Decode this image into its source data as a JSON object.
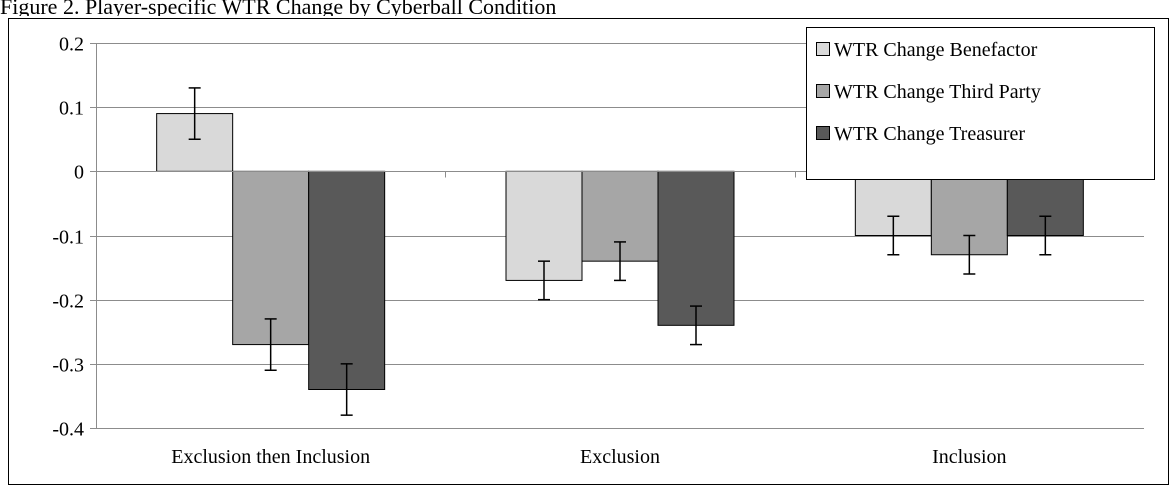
{
  "figure_title": "Figure 2. Player-specific WTR Change by Cyberball Condition",
  "chart_data": {
    "type": "bar",
    "title": "",
    "xlabel": "",
    "ylabel": "",
    "categories": [
      "Exclusion then Inclusion",
      "Exclusion",
      "Inclusion"
    ],
    "ylim": [
      -0.4,
      0.2
    ],
    "yticks": [
      0.2,
      0.1,
      0,
      -0.1,
      -0.2,
      -0.3,
      -0.4
    ],
    "ytick_labels": [
      "0.2",
      "0.1",
      "0",
      "-0.1",
      "-0.2",
      "-0.3",
      "-0.4"
    ],
    "grid": true,
    "legend_position": "top-right",
    "series": [
      {
        "name": "WTR Change Benefactor",
        "color": "#d9d9d9",
        "values": [
          0.09,
          -0.17,
          -0.1
        ],
        "error": [
          0.04,
          0.03,
          0.03
        ]
      },
      {
        "name": "WTR Change Third Party",
        "color": "#a6a6a6",
        "values": [
          -0.27,
          -0.14,
          -0.13
        ],
        "error": [
          0.04,
          0.03,
          0.03
        ]
      },
      {
        "name": "WTR Change Treasurer",
        "color": "#595959",
        "values": [
          -0.34,
          -0.24,
          -0.1
        ],
        "error": [
          0.04,
          0.03,
          0.03
        ]
      }
    ]
  }
}
